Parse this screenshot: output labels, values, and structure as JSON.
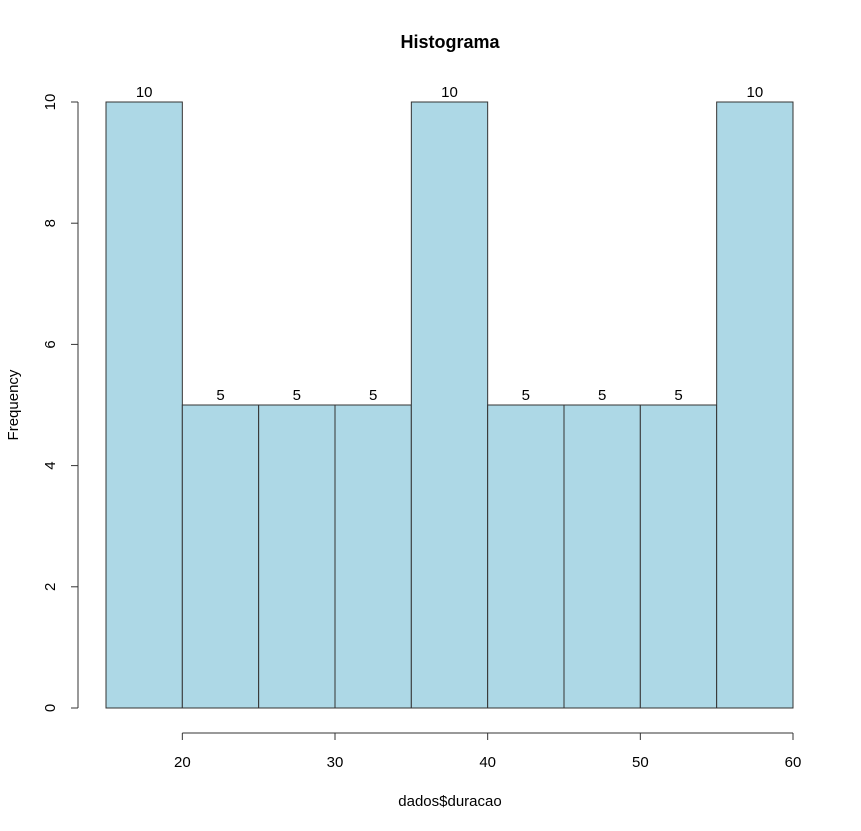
{
  "chart_data": {
    "type": "bar",
    "title": "Histograma",
    "xlabel": "dados$duracao",
    "ylabel": "Frequency",
    "bins": [
      {
        "start": 15,
        "end": 20,
        "count": 10
      },
      {
        "start": 20,
        "end": 25,
        "count": 5
      },
      {
        "start": 25,
        "end": 30,
        "count": 5
      },
      {
        "start": 30,
        "end": 35,
        "count": 5
      },
      {
        "start": 35,
        "end": 40,
        "count": 10
      },
      {
        "start": 40,
        "end": 45,
        "count": 5
      },
      {
        "start": 45,
        "end": 50,
        "count": 5
      },
      {
        "start": 50,
        "end": 55,
        "count": 5
      },
      {
        "start": 55,
        "end": 60,
        "count": 10
      }
    ],
    "xlim": [
      15,
      60
    ],
    "ylim": [
      0,
      10
    ],
    "xticks": [
      20,
      30,
      40,
      50,
      60
    ],
    "yticks": [
      0,
      2,
      4,
      6,
      8,
      10
    ],
    "show_data_labels": true,
    "grid": false,
    "bar_color": "#add8e6",
    "edge_color": "#333333"
  }
}
